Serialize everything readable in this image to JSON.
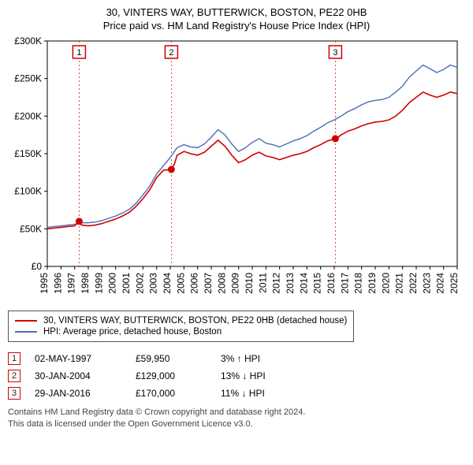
{
  "title_line1": "30, VINTERS WAY, BUTTERWICK, BOSTON, PE22 0HB",
  "title_line2": "Price paid vs. HM Land Registry's House Price Index (HPI)",
  "chart": {
    "type": "line",
    "xlim": [
      1995,
      2025
    ],
    "ylim": [
      0,
      300000
    ],
    "ytick_step": 50000,
    "y_prefix": "£",
    "x_ticks": [
      1995,
      1996,
      1997,
      1998,
      1999,
      2000,
      2001,
      2002,
      2003,
      2004,
      2005,
      2006,
      2007,
      2008,
      2009,
      2010,
      2011,
      2012,
      2013,
      2014,
      2015,
      2016,
      2017,
      2018,
      2019,
      2020,
      2021,
      2022,
      2023,
      2024,
      2025
    ],
    "background_color": "#ffffff",
    "grid_color": "#000000",
    "axis_font_size": 12,
    "title_font_size": 13,
    "series_property": {
      "label": "30, VINTERS WAY, BUTTERWICK, BOSTON, PE22 0HB (detached house)",
      "color": "#d00000",
      "width": 1.6,
      "data": [
        [
          1995,
          50000
        ],
        [
          1995.5,
          51000
        ],
        [
          1996,
          52000
        ],
        [
          1996.5,
          53000
        ],
        [
          1997,
          54000
        ],
        [
          1997.33,
          59950
        ],
        [
          1997.5,
          55000
        ],
        [
          1998,
          54000
        ],
        [
          1998.5,
          55000
        ],
        [
          1999,
          57000
        ],
        [
          1999.5,
          60000
        ],
        [
          2000,
          63000
        ],
        [
          2000.5,
          67000
        ],
        [
          2001,
          72000
        ],
        [
          2001.5,
          80000
        ],
        [
          2002,
          90000
        ],
        [
          2002.5,
          102000
        ],
        [
          2003,
          118000
        ],
        [
          2003.5,
          128000
        ],
        [
          2004.08,
          129000
        ],
        [
          2004.3,
          136000
        ],
        [
          2004.5,
          148000
        ],
        [
          2005,
          153000
        ],
        [
          2005.5,
          150000
        ],
        [
          2006,
          148000
        ],
        [
          2006.5,
          152000
        ],
        [
          2007,
          160000
        ],
        [
          2007.5,
          168000
        ],
        [
          2008,
          160000
        ],
        [
          2008.5,
          148000
        ],
        [
          2009,
          138000
        ],
        [
          2009.5,
          142000
        ],
        [
          2010,
          148000
        ],
        [
          2010.5,
          152000
        ],
        [
          2011,
          147000
        ],
        [
          2011.5,
          145000
        ],
        [
          2012,
          142000
        ],
        [
          2012.5,
          145000
        ],
        [
          2013,
          148000
        ],
        [
          2013.5,
          150000
        ],
        [
          2014,
          153000
        ],
        [
          2014.5,
          158000
        ],
        [
          2015,
          162000
        ],
        [
          2015.5,
          167000
        ],
        [
          2016.08,
          170000
        ],
        [
          2016.3,
          172000
        ],
        [
          2016.5,
          175000
        ],
        [
          2017,
          180000
        ],
        [
          2017.5,
          183000
        ],
        [
          2018,
          187000
        ],
        [
          2018.5,
          190000
        ],
        [
          2019,
          192000
        ],
        [
          2019.5,
          193000
        ],
        [
          2020,
          195000
        ],
        [
          2020.5,
          200000
        ],
        [
          2021,
          208000
        ],
        [
          2021.5,
          218000
        ],
        [
          2022,
          225000
        ],
        [
          2022.5,
          232000
        ],
        [
          2023,
          228000
        ],
        [
          2023.5,
          225000
        ],
        [
          2024,
          228000
        ],
        [
          2024.5,
          232000
        ],
        [
          2025,
          230000
        ]
      ]
    },
    "series_hpi": {
      "label": "HPI: Average price, detached house, Boston",
      "color": "#4a6fb5",
      "width": 1.4,
      "data": [
        [
          1995,
          52000
        ],
        [
          1995.5,
          53000
        ],
        [
          1996,
          54000
        ],
        [
          1996.5,
          55000
        ],
        [
          1997,
          56000
        ],
        [
          1997.5,
          58000
        ],
        [
          1998,
          58000
        ],
        [
          1998.5,
          59000
        ],
        [
          1999,
          61000
        ],
        [
          1999.5,
          64000
        ],
        [
          2000,
          67000
        ],
        [
          2000.5,
          71000
        ],
        [
          2001,
          76000
        ],
        [
          2001.5,
          84000
        ],
        [
          2002,
          95000
        ],
        [
          2002.5,
          107000
        ],
        [
          2003,
          123000
        ],
        [
          2003.5,
          134000
        ],
        [
          2004,
          145000
        ],
        [
          2004.5,
          158000
        ],
        [
          2005,
          162000
        ],
        [
          2005.5,
          159000
        ],
        [
          2006,
          158000
        ],
        [
          2006.5,
          163000
        ],
        [
          2007,
          172000
        ],
        [
          2007.5,
          182000
        ],
        [
          2008,
          175000
        ],
        [
          2008.5,
          163000
        ],
        [
          2009,
          153000
        ],
        [
          2009.5,
          158000
        ],
        [
          2010,
          165000
        ],
        [
          2010.5,
          170000
        ],
        [
          2011,
          164000
        ],
        [
          2011.5,
          162000
        ],
        [
          2012,
          159000
        ],
        [
          2012.5,
          163000
        ],
        [
          2013,
          167000
        ],
        [
          2013.5,
          170000
        ],
        [
          2014,
          174000
        ],
        [
          2014.5,
          180000
        ],
        [
          2015,
          185000
        ],
        [
          2015.5,
          191000
        ],
        [
          2016,
          195000
        ],
        [
          2016.5,
          200000
        ],
        [
          2017,
          206000
        ],
        [
          2017.5,
          210000
        ],
        [
          2018,
          215000
        ],
        [
          2018.5,
          219000
        ],
        [
          2019,
          221000
        ],
        [
          2019.5,
          222000
        ],
        [
          2020,
          225000
        ],
        [
          2020.5,
          232000
        ],
        [
          2021,
          240000
        ],
        [
          2021.5,
          252000
        ],
        [
          2022,
          260000
        ],
        [
          2022.5,
          268000
        ],
        [
          2023,
          263000
        ],
        [
          2023.5,
          258000
        ],
        [
          2024,
          262000
        ],
        [
          2024.5,
          268000
        ],
        [
          2025,
          265000
        ]
      ]
    },
    "transactions": [
      {
        "n": "1",
        "year": 1997.33,
        "price": 59950,
        "date": "02-MAY-1997",
        "price_label": "£59,950",
        "hpi_label": "3% ↑ HPI"
      },
      {
        "n": "2",
        "year": 2004.08,
        "price": 129000,
        "date": "30-JAN-2004",
        "price_label": "£129,000",
        "hpi_label": "13% ↓ HPI"
      },
      {
        "n": "3",
        "year": 2016.08,
        "price": 170000,
        "date": "29-JAN-2016",
        "price_label": "£170,000",
        "hpi_label": "11% ↓ HPI"
      }
    ],
    "marker_border_color": "#d00000",
    "marker_dash_color": "#d00000",
    "marker_fill": "#ffffff",
    "dot_color": "#d00000"
  },
  "footnote_line1": "Contains HM Land Registry data © Crown copyright and database right 2024.",
  "footnote_line2": "This data is licensed under the Open Government Licence v3.0."
}
